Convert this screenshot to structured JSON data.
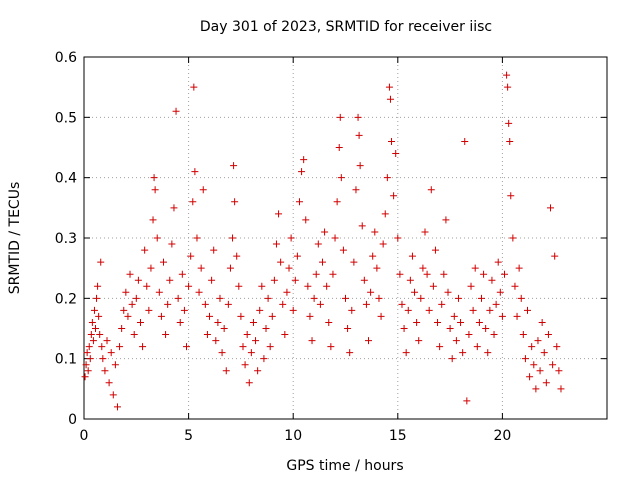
{
  "chart_data": {
    "type": "scatter",
    "title": "Day 301 of 2023, SRMTID for receiver iisc",
    "xlabel": "GPS time / hours",
    "ylabel": "SRMTID / TECUs",
    "xlim": [
      0,
      25
    ],
    "ylim": [
      0,
      0.6
    ],
    "x_ticks": [
      0,
      5,
      10,
      15,
      20
    ],
    "y_ticks": [
      0,
      0.1,
      0.2,
      0.3,
      0.4,
      0.5,
      0.6
    ],
    "x_tick_labels": [
      "0",
      "5",
      "10",
      "15",
      "20"
    ],
    "y_tick_labels": [
      "0",
      "0.1",
      "0.2",
      "0.3",
      "0.4",
      "0.5",
      "0.6"
    ],
    "grid": true,
    "marker": "plus",
    "color": "#d00000",
    "series": [
      {
        "name": "SRMTID",
        "points": [
          [
            0.05,
            0.07
          ],
          [
            0.1,
            0.09
          ],
          [
            0.15,
            0.11
          ],
          [
            0.2,
            0.08
          ],
          [
            0.25,
            0.12
          ],
          [
            0.3,
            0.1
          ],
          [
            0.35,
            0.14
          ],
          [
            0.4,
            0.16
          ],
          [
            0.45,
            0.13
          ],
          [
            0.5,
            0.18
          ],
          [
            0.55,
            0.15
          ],
          [
            0.6,
            0.2
          ],
          [
            0.65,
            0.22
          ],
          [
            0.7,
            0.17
          ],
          [
            0.75,
            0.14
          ],
          [
            0.8,
            0.26
          ],
          [
            0.85,
            0.12
          ],
          [
            0.9,
            0.1
          ],
          [
            1.0,
            0.08
          ],
          [
            1.1,
            0.13
          ],
          [
            1.2,
            0.06
          ],
          [
            1.3,
            0.11
          ],
          [
            1.4,
            0.04
          ],
          [
            1.5,
            0.09
          ],
          [
            1.6,
            0.02
          ],
          [
            1.7,
            0.12
          ],
          [
            1.8,
            0.15
          ],
          [
            1.9,
            0.18
          ],
          [
            2.0,
            0.21
          ],
          [
            2.1,
            0.17
          ],
          [
            2.2,
            0.24
          ],
          [
            2.3,
            0.19
          ],
          [
            2.4,
            0.14
          ],
          [
            2.5,
            0.2
          ],
          [
            2.6,
            0.23
          ],
          [
            2.7,
            0.16
          ],
          [
            2.8,
            0.12
          ],
          [
            2.9,
            0.28
          ],
          [
            3.0,
            0.22
          ],
          [
            3.1,
            0.18
          ],
          [
            3.2,
            0.25
          ],
          [
            3.3,
            0.33
          ],
          [
            3.35,
            0.4
          ],
          [
            3.4,
            0.38
          ],
          [
            3.5,
            0.3
          ],
          [
            3.6,
            0.21
          ],
          [
            3.7,
            0.17
          ],
          [
            3.8,
            0.26
          ],
          [
            3.9,
            0.14
          ],
          [
            4.0,
            0.19
          ],
          [
            4.1,
            0.23
          ],
          [
            4.2,
            0.29
          ],
          [
            4.3,
            0.35
          ],
          [
            4.4,
            0.51
          ],
          [
            4.5,
            0.2
          ],
          [
            4.6,
            0.16
          ],
          [
            4.7,
            0.24
          ],
          [
            4.8,
            0.18
          ],
          [
            4.9,
            0.12
          ],
          [
            5.0,
            0.22
          ],
          [
            5.1,
            0.27
          ],
          [
            5.2,
            0.36
          ],
          [
            5.25,
            0.55
          ],
          [
            5.3,
            0.41
          ],
          [
            5.4,
            0.3
          ],
          [
            5.5,
            0.21
          ],
          [
            5.6,
            0.25
          ],
          [
            5.7,
            0.38
          ],
          [
            5.8,
            0.19
          ],
          [
            5.9,
            0.14
          ],
          [
            6.0,
            0.17
          ],
          [
            6.1,
            0.23
          ],
          [
            6.2,
            0.28
          ],
          [
            6.3,
            0.13
          ],
          [
            6.4,
            0.16
          ],
          [
            6.5,
            0.2
          ],
          [
            6.6,
            0.11
          ],
          [
            6.7,
            0.15
          ],
          [
            6.8,
            0.08
          ],
          [
            6.9,
            0.19
          ],
          [
            7.0,
            0.25
          ],
          [
            7.1,
            0.3
          ],
          [
            7.15,
            0.42
          ],
          [
            7.2,
            0.36
          ],
          [
            7.3,
            0.27
          ],
          [
            7.4,
            0.22
          ],
          [
            7.5,
            0.17
          ],
          [
            7.6,
            0.12
          ],
          [
            7.7,
            0.09
          ],
          [
            7.8,
            0.14
          ],
          [
            7.9,
            0.06
          ],
          [
            8.0,
            0.11
          ],
          [
            8.1,
            0.16
          ],
          [
            8.2,
            0.13
          ],
          [
            8.3,
            0.08
          ],
          [
            8.4,
            0.18
          ],
          [
            8.5,
            0.22
          ],
          [
            8.6,
            0.1
          ],
          [
            8.7,
            0.15
          ],
          [
            8.8,
            0.2
          ],
          [
            8.9,
            0.12
          ],
          [
            9.0,
            0.17
          ],
          [
            9.1,
            0.23
          ],
          [
            9.2,
            0.29
          ],
          [
            9.3,
            0.34
          ],
          [
            9.4,
            0.26
          ],
          [
            9.5,
            0.19
          ],
          [
            9.6,
            0.14
          ],
          [
            9.7,
            0.21
          ],
          [
            9.8,
            0.25
          ],
          [
            9.9,
            0.3
          ],
          [
            10.0,
            0.18
          ],
          [
            10.1,
            0.23
          ],
          [
            10.2,
            0.27
          ],
          [
            10.3,
            0.36
          ],
          [
            10.4,
            0.41
          ],
          [
            10.5,
            0.43
          ],
          [
            10.6,
            0.33
          ],
          [
            10.7,
            0.22
          ],
          [
            10.8,
            0.17
          ],
          [
            10.9,
            0.13
          ],
          [
            11.0,
            0.2
          ],
          [
            11.1,
            0.24
          ],
          [
            11.2,
            0.29
          ],
          [
            11.3,
            0.19
          ],
          [
            11.4,
            0.26
          ],
          [
            11.5,
            0.31
          ],
          [
            11.6,
            0.22
          ],
          [
            11.7,
            0.16
          ],
          [
            11.8,
            0.12
          ],
          [
            11.9,
            0.24
          ],
          [
            12.0,
            0.3
          ],
          [
            12.1,
            0.36
          ],
          [
            12.2,
            0.45
          ],
          [
            12.25,
            0.5
          ],
          [
            12.3,
            0.4
          ],
          [
            12.4,
            0.28
          ],
          [
            12.5,
            0.2
          ],
          [
            12.6,
            0.15
          ],
          [
            12.7,
            0.11
          ],
          [
            12.8,
            0.18
          ],
          [
            12.9,
            0.26
          ],
          [
            13.0,
            0.38
          ],
          [
            13.1,
            0.5
          ],
          [
            13.15,
            0.47
          ],
          [
            13.2,
            0.42
          ],
          [
            13.3,
            0.32
          ],
          [
            13.4,
            0.23
          ],
          [
            13.5,
            0.19
          ],
          [
            13.6,
            0.13
          ],
          [
            13.7,
            0.21
          ],
          [
            13.8,
            0.27
          ],
          [
            13.9,
            0.31
          ],
          [
            14.0,
            0.25
          ],
          [
            14.1,
            0.2
          ],
          [
            14.2,
            0.17
          ],
          [
            14.3,
            0.29
          ],
          [
            14.4,
            0.34
          ],
          [
            14.5,
            0.4
          ],
          [
            14.6,
            0.55
          ],
          [
            14.65,
            0.53
          ],
          [
            14.7,
            0.46
          ],
          [
            14.8,
            0.37
          ],
          [
            14.9,
            0.44
          ],
          [
            15.0,
            0.3
          ],
          [
            15.1,
            0.24
          ],
          [
            15.2,
            0.19
          ],
          [
            15.3,
            0.15
          ],
          [
            15.4,
            0.11
          ],
          [
            15.5,
            0.18
          ],
          [
            15.6,
            0.23
          ],
          [
            15.7,
            0.27
          ],
          [
            15.8,
            0.21
          ],
          [
            15.9,
            0.16
          ],
          [
            16.0,
            0.13
          ],
          [
            16.1,
            0.2
          ],
          [
            16.2,
            0.25
          ],
          [
            16.3,
            0.31
          ],
          [
            16.4,
            0.24
          ],
          [
            16.5,
            0.18
          ],
          [
            16.6,
            0.38
          ],
          [
            16.7,
            0.22
          ],
          [
            16.8,
            0.28
          ],
          [
            16.9,
            0.16
          ],
          [
            17.0,
            0.12
          ],
          [
            17.1,
            0.19
          ],
          [
            17.2,
            0.24
          ],
          [
            17.3,
            0.33
          ],
          [
            17.4,
            0.21
          ],
          [
            17.5,
            0.15
          ],
          [
            17.6,
            0.1
          ],
          [
            17.7,
            0.17
          ],
          [
            17.8,
            0.13
          ],
          [
            17.9,
            0.2
          ],
          [
            18.0,
            0.16
          ],
          [
            18.1,
            0.11
          ],
          [
            18.2,
            0.46
          ],
          [
            18.3,
            0.03
          ],
          [
            18.4,
            0.14
          ],
          [
            18.5,
            0.22
          ],
          [
            18.6,
            0.18
          ],
          [
            18.7,
            0.25
          ],
          [
            18.8,
            0.12
          ],
          [
            18.9,
            0.16
          ],
          [
            19.0,
            0.2
          ],
          [
            19.1,
            0.24
          ],
          [
            19.2,
            0.15
          ],
          [
            19.3,
            0.11
          ],
          [
            19.4,
            0.18
          ],
          [
            19.5,
            0.23
          ],
          [
            19.6,
            0.14
          ],
          [
            19.7,
            0.19
          ],
          [
            19.8,
            0.26
          ],
          [
            19.9,
            0.21
          ],
          [
            20.0,
            0.17
          ],
          [
            20.1,
            0.24
          ],
          [
            20.2,
            0.57
          ],
          [
            20.25,
            0.55
          ],
          [
            20.3,
            0.49
          ],
          [
            20.35,
            0.46
          ],
          [
            20.4,
            0.37
          ],
          [
            20.5,
            0.3
          ],
          [
            20.6,
            0.22
          ],
          [
            20.7,
            0.17
          ],
          [
            20.8,
            0.25
          ],
          [
            20.9,
            0.2
          ],
          [
            21.0,
            0.14
          ],
          [
            21.1,
            0.1
          ],
          [
            21.2,
            0.18
          ],
          [
            21.3,
            0.07
          ],
          [
            21.4,
            0.12
          ],
          [
            21.5,
            0.09
          ],
          [
            21.6,
            0.05
          ],
          [
            21.7,
            0.13
          ],
          [
            21.8,
            0.08
          ],
          [
            21.9,
            0.16
          ],
          [
            22.0,
            0.11
          ],
          [
            22.1,
            0.06
          ],
          [
            22.2,
            0.14
          ],
          [
            22.3,
            0.35
          ],
          [
            22.4,
            0.09
          ],
          [
            22.5,
            0.27
          ],
          [
            22.6,
            0.12
          ],
          [
            22.7,
            0.08
          ],
          [
            22.8,
            0.05
          ]
        ]
      }
    ]
  }
}
